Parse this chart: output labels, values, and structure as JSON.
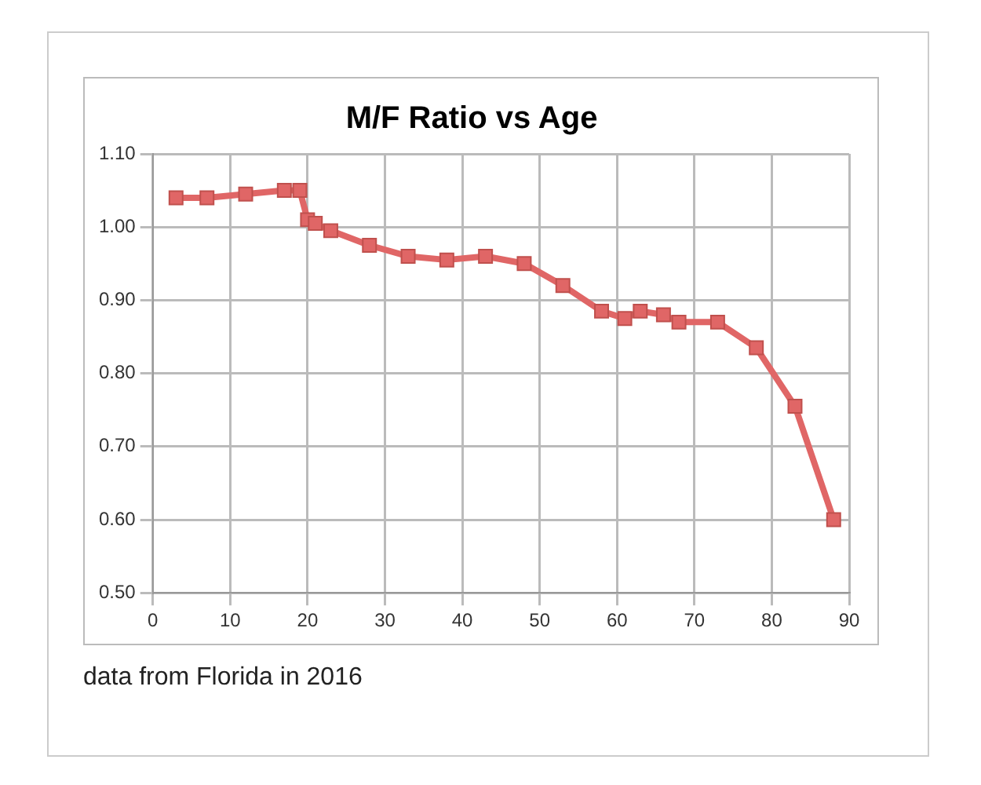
{
  "chart_data": {
    "type": "line",
    "title": "M/F Ratio vs Age",
    "series": [
      {
        "color": "#e06666",
        "x": [
          3,
          7,
          12,
          17,
          19,
          20,
          21,
          23,
          28,
          33,
          38,
          43,
          48,
          53,
          58,
          61,
          63,
          66,
          68,
          73,
          78,
          83,
          88
        ],
        "values": [
          1.04,
          1.04,
          1.045,
          1.05,
          1.05,
          1.01,
          1.005,
          0.995,
          0.975,
          0.96,
          0.955,
          0.96,
          0.95,
          0.92,
          0.885,
          0.875,
          0.885,
          0.88,
          0.87,
          0.87,
          0.835,
          0.755,
          0.6
        ]
      }
    ],
    "xlim": [
      0,
      90
    ],
    "xticks": [
      0,
      10,
      20,
      30,
      40,
      50,
      60,
      70,
      80,
      90
    ],
    "ylim": [
      0.5,
      1.1
    ],
    "yticks": [
      {
        "value": 0.5,
        "label": "0.50"
      },
      {
        "value": 0.6,
        "label": "0.60"
      },
      {
        "value": 0.7,
        "label": "0.70"
      },
      {
        "value": 0.8,
        "label": "0.80"
      },
      {
        "value": 0.9,
        "label": "0.90"
      },
      {
        "value": 1.0,
        "label": "1.00"
      },
      {
        "value": 1.1,
        "label": "1.10"
      }
    ],
    "grid": true,
    "legend": false,
    "marker": "square",
    "line_style": "solid",
    "annotations": [
      "data from Florida in 2016"
    ]
  }
}
